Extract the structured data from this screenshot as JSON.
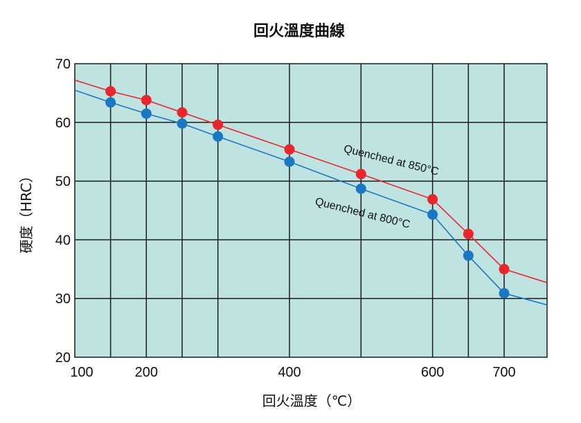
{
  "chart_data": {
    "type": "line",
    "title": "回火溫度曲線",
    "xlabel": "回火溫度（℃）",
    "ylabel": "硬度（HRC）",
    "xlim": [
      100,
      760
    ],
    "ylim": [
      20,
      70
    ],
    "x_ticks": [
      100,
      200,
      400,
      600,
      700
    ],
    "x_tick_labels": [
      "100",
      "200",
      "400",
      "600",
      "700"
    ],
    "y_ticks": [
      20,
      30,
      40,
      50,
      60,
      70
    ],
    "y_tick_labels": [
      "20",
      "30",
      "40",
      "50",
      "60",
      "70"
    ],
    "x_gridlines": [
      150,
      200,
      250,
      300,
      400,
      500,
      600,
      650,
      700
    ],
    "y_gridlines": [
      30,
      40,
      50,
      60
    ],
    "grid": true,
    "colors": {
      "plot_bg": "#bfe3e0",
      "grid": "#1a1a1a",
      "series_850": "#e8262d",
      "series_800": "#1a78c2"
    },
    "series": [
      {
        "name": "Quenched at 850°C",
        "color": "#e8262d",
        "line_start": [
          100,
          67.2
        ],
        "line_end": [
          760,
          32.7
        ],
        "points": [
          [
            150,
            65.3
          ],
          [
            200,
            63.8
          ],
          [
            250,
            61.7
          ],
          [
            300,
            59.6
          ],
          [
            400,
            55.4
          ],
          [
            500,
            51.2
          ],
          [
            600,
            46.9
          ],
          [
            650,
            41.0
          ],
          [
            700,
            35.0
          ]
        ]
      },
      {
        "name": "Quenched at 800°C",
        "color": "#1a78c2",
        "line_start": [
          100,
          65.5
        ],
        "line_end": [
          760,
          28.9
        ],
        "points": [
          [
            150,
            63.4
          ],
          [
            200,
            61.5
          ],
          [
            250,
            59.8
          ],
          [
            300,
            57.6
          ],
          [
            400,
            53.3
          ],
          [
            500,
            48.7
          ],
          [
            600,
            44.3
          ],
          [
            650,
            37.3
          ],
          [
            700,
            30.9
          ]
        ]
      }
    ],
    "annotations": [
      {
        "text": "Quenched at 850°C",
        "x": 475,
        "y": 55.0,
        "rotate": 14
      },
      {
        "text": "Quenched at 800°C",
        "x": 435,
        "y": 46.0,
        "rotate": 14
      }
    ]
  }
}
